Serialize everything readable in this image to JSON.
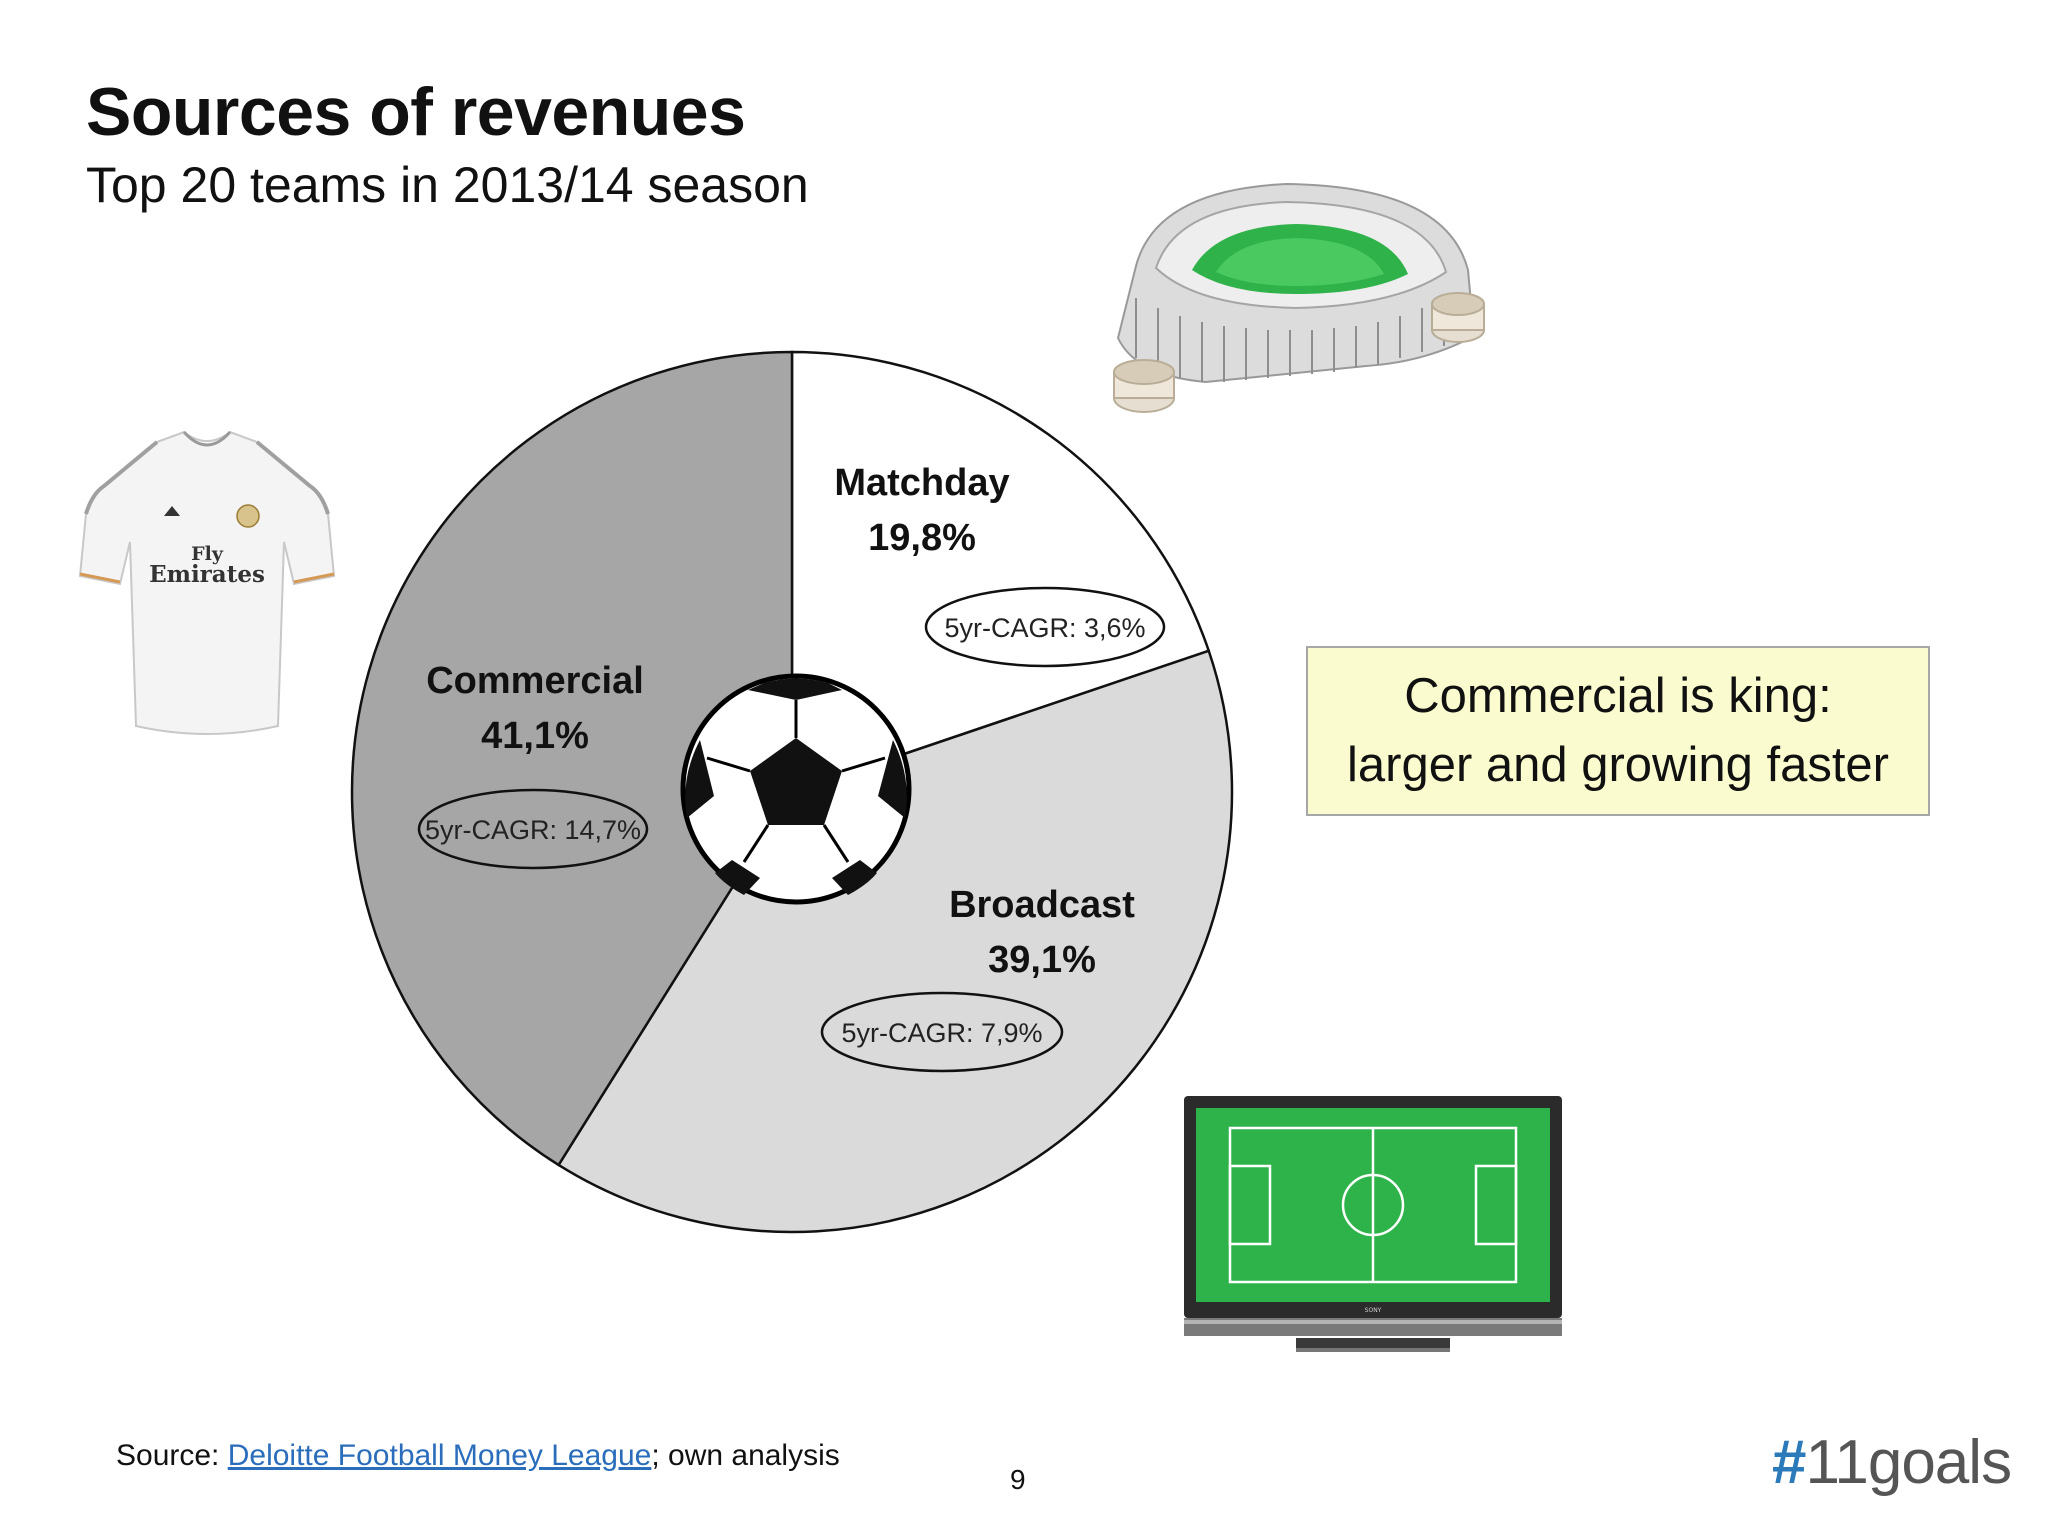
{
  "slide": {
    "title": "Sources of revenues",
    "subtitle": "Top 20 teams in 2013/14 season",
    "callout": {
      "line1": "Commercial is king:",
      "line2": "larger and growing faster"
    },
    "source": {
      "prefix": "Source: ",
      "link_text": "Deloitte Football Money League",
      "suffix": "; own analysis"
    },
    "page_number": "9",
    "brand": {
      "hash": "#",
      "word": "11goals"
    },
    "images": {
      "shirt_text_line1": "Fly",
      "shirt_text_line2": "Emirates",
      "tv_brand": "SONY"
    }
  },
  "chart_data": {
    "type": "pie",
    "title": "",
    "categories": [
      "Matchday",
      "Broadcast",
      "Commercial"
    ],
    "values": [
      19.8,
      39.1,
      41.1
    ],
    "value_labels": [
      "19,8%",
      "39,1%",
      "41,1%"
    ],
    "cagr_labels": [
      "5yr-CAGR: 3,6%",
      "5yr-CAGR: 7,9%",
      "5yr-CAGR: 14,7%"
    ],
    "colors": [
      "#ffffff",
      "#dadada",
      "#a6a6a6"
    ],
    "start_angle_deg": 0,
    "direction": "clockwise",
    "legend": "none"
  }
}
